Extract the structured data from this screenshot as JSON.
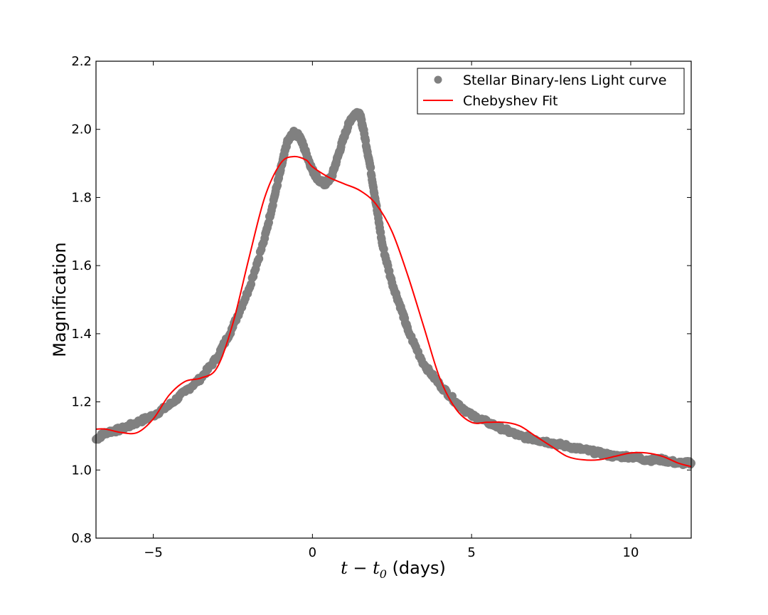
{
  "chart_data": {
    "type": "scatter",
    "xlabel_prefix_math": "t − t",
    "xlabel_subscript": "0",
    "xlabel_suffix": " (days)",
    "ylabel": "Magnification",
    "xlim": [
      -6.8,
      11.9
    ],
    "ylim": [
      0.8,
      2.2
    ],
    "xticks": [
      -5,
      0,
      5,
      10
    ],
    "xtick_labels": [
      "−5",
      "0",
      "5",
      "10"
    ],
    "yticks": [
      0.8,
      1.0,
      1.2,
      1.4,
      1.6,
      1.8,
      2.0,
      2.2
    ],
    "ytick_labels": [
      "0.8",
      "1.0",
      "1.2",
      "1.4",
      "1.6",
      "1.8",
      "2.0",
      "2.2"
    ],
    "grid": false,
    "legend_position": "top-right",
    "series": [
      {
        "name": "Stellar Binary-lens Light curve",
        "type": "scatter",
        "color": "#808080",
        "x": [
          -6.8,
          -6.5,
          -6.0,
          -5.5,
          -5.0,
          -4.5,
          -4.0,
          -3.5,
          -3.0,
          -2.5,
          -2.0,
          -1.5,
          -1.2,
          -1.0,
          -0.8,
          -0.6,
          -0.4,
          -0.2,
          0.0,
          0.2,
          0.4,
          0.6,
          0.8,
          1.0,
          1.2,
          1.4,
          1.5,
          1.6,
          1.8,
          2.0,
          2.2,
          2.5,
          2.8,
          3.0,
          3.5,
          4.0,
          4.5,
          5.0,
          5.5,
          6.0,
          6.5,
          7.0,
          7.5,
          8.0,
          8.5,
          9.0,
          9.5,
          10.0,
          10.5,
          11.0,
          11.5,
          11.9
        ],
        "y": [
          1.09,
          1.11,
          1.12,
          1.14,
          1.16,
          1.19,
          1.23,
          1.27,
          1.33,
          1.42,
          1.53,
          1.68,
          1.8,
          1.88,
          1.96,
          1.99,
          1.98,
          1.93,
          1.88,
          1.85,
          1.84,
          1.86,
          1.92,
          1.98,
          2.03,
          2.05,
          2.04,
          2.0,
          1.9,
          1.78,
          1.66,
          1.55,
          1.47,
          1.41,
          1.31,
          1.25,
          1.2,
          1.16,
          1.14,
          1.12,
          1.1,
          1.09,
          1.08,
          1.07,
          1.06,
          1.05,
          1.04,
          1.04,
          1.03,
          1.03,
          1.02,
          1.02
        ]
      },
      {
        "name": "Chebyshev Fit",
        "type": "line",
        "color": "#ff0000",
        "x": [
          -6.8,
          -6.5,
          -6.0,
          -5.5,
          -5.0,
          -4.5,
          -4.0,
          -3.5,
          -3.0,
          -2.5,
          -2.0,
          -1.5,
          -1.0,
          -0.6,
          -0.2,
          0.0,
          0.5,
          1.0,
          1.5,
          2.0,
          2.5,
          3.0,
          3.5,
          4.0,
          4.5,
          5.0,
          5.5,
          6.0,
          6.5,
          7.0,
          7.5,
          8.0,
          8.5,
          9.0,
          9.5,
          10.0,
          10.5,
          11.0,
          11.5,
          11.9
        ],
        "y": [
          1.12,
          1.12,
          1.11,
          1.11,
          1.15,
          1.22,
          1.26,
          1.27,
          1.3,
          1.43,
          1.62,
          1.8,
          1.9,
          1.92,
          1.91,
          1.89,
          1.86,
          1.84,
          1.82,
          1.78,
          1.7,
          1.57,
          1.42,
          1.27,
          1.18,
          1.14,
          1.14,
          1.14,
          1.13,
          1.1,
          1.07,
          1.04,
          1.03,
          1.03,
          1.04,
          1.05,
          1.05,
          1.04,
          1.02,
          1.01
        ]
      }
    ]
  }
}
